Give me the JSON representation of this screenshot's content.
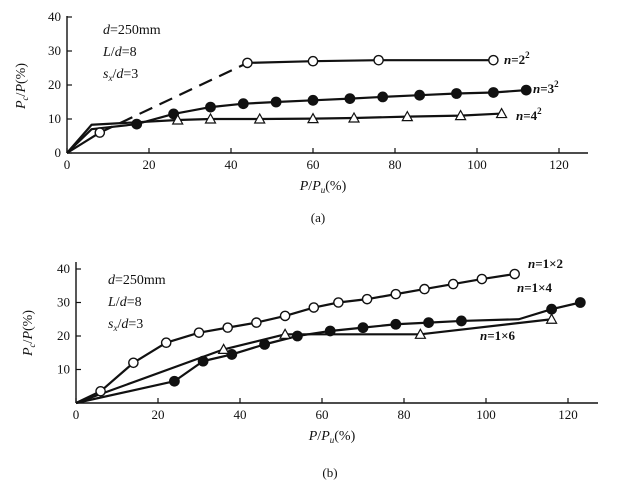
{
  "chart_data": [
    {
      "type": "line",
      "caption": "(a)",
      "xlabel": "P/Pu(%)",
      "ylabel": "Pc/P(%)",
      "xlim": [
        0,
        130
      ],
      "ylim": [
        0,
        40
      ],
      "xticks": [
        "0",
        "20",
        "40",
        "60",
        "80",
        "100",
        "120"
      ],
      "yticks": [
        "0",
        "10",
        "20",
        "30",
        "40"
      ],
      "annotations": [
        "d=250mm",
        "L/d=8",
        "sx/d=3"
      ],
      "series": [
        {
          "name": "n=2²",
          "marker": "open-circle",
          "x": [
            0,
            8,
            44,
            60,
            76,
            104
          ],
          "y": [
            0,
            6,
            26.5,
            27,
            27.3,
            27.3
          ],
          "dashed_segment": [
            8,
            44
          ],
          "marker_x": [
            8,
            44,
            60,
            76,
            104
          ],
          "marker_y": [
            6,
            26.5,
            27,
            27.3,
            27.3
          ]
        },
        {
          "name": "n=3²",
          "marker": "filled-circle",
          "x": [
            0,
            6,
            17,
            26,
            35,
            43,
            51,
            60,
            69,
            77,
            86,
            95,
            104,
            112
          ],
          "y": [
            0,
            7,
            8.5,
            11.5,
            13.5,
            14.5,
            15,
            15.5,
            16,
            16.5,
            17,
            17.5,
            17.8,
            18.5
          ],
          "marker_x": [
            17,
            26,
            35,
            43,
            51,
            60,
            69,
            77,
            86,
            95,
            104,
            112
          ],
          "marker_y": [
            8.5,
            11.5,
            13.5,
            14.5,
            15,
            15.5,
            16,
            16.5,
            17,
            17.5,
            17.8,
            18.5
          ]
        },
        {
          "name": "n=4²",
          "marker": "open-triangle",
          "x": [
            0,
            6,
            27,
            35,
            47,
            60,
            70,
            83,
            96,
            106
          ],
          "y": [
            0,
            8.3,
            9.7,
            10,
            10,
            10.1,
            10.3,
            10.7,
            11,
            11.6
          ],
          "marker_x": [
            27,
            35,
            47,
            60,
            70,
            83,
            96,
            106
          ],
          "marker_y": [
            9.7,
            10,
            10,
            10.1,
            10.3,
            10.7,
            11,
            11.6
          ]
        }
      ]
    },
    {
      "type": "line",
      "caption": "(b)",
      "xlabel": "P/Pu(%)",
      "ylabel": "Pc/P(%)",
      "xlim": [
        0,
        130
      ],
      "ylim": [
        0,
        40
      ],
      "xticks": [
        "0",
        "20",
        "40",
        "60",
        "80",
        "100",
        "120"
      ],
      "yticks": [
        "10",
        "20",
        "30",
        "40"
      ],
      "annotations": [
        "d=250mm",
        "L/d=8",
        "sx/d=3"
      ],
      "series": [
        {
          "name": "n=1×2",
          "marker": "open-circle",
          "x": [
            0,
            6,
            14,
            22,
            30,
            37,
            44,
            51,
            58,
            64,
            71,
            78,
            85,
            92,
            99,
            107
          ],
          "y": [
            0,
            3.5,
            12,
            18,
            21,
            22.5,
            24,
            26,
            28.5,
            30,
            31,
            32.5,
            34,
            35.5,
            37,
            38.5
          ],
          "marker_x": [
            6,
            14,
            22,
            30,
            37,
            44,
            51,
            58,
            64,
            71,
            78,
            85,
            92,
            99,
            107
          ],
          "marker_y": [
            3.5,
            12,
            18,
            21,
            22.5,
            24,
            26,
            28.5,
            30,
            31,
            32.5,
            34,
            35.5,
            37,
            38.5
          ]
        },
        {
          "name": "n=1×4",
          "marker": "filled-circle",
          "x": [
            0,
            24,
            31,
            38,
            46,
            54,
            62,
            70,
            78,
            86,
            94,
            108,
            116,
            123
          ],
          "y": [
            0,
            6.5,
            12.5,
            14.5,
            17.5,
            20,
            21.5,
            22.5,
            23.5,
            24,
            24.5,
            25,
            28,
            30
          ],
          "marker_x": [
            24,
            31,
            38,
            46,
            54,
            62,
            70,
            78,
            86,
            94,
            116,
            123
          ],
          "marker_y": [
            6.5,
            12.5,
            14.5,
            17.5,
            20,
            21.5,
            22.5,
            23.5,
            24,
            24.5,
            28,
            30
          ]
        },
        {
          "name": "n=1×6",
          "marker": "open-triangle",
          "x": [
            0,
            36,
            51,
            84,
            116
          ],
          "y": [
            0,
            16,
            20.5,
            20.5,
            25
          ],
          "marker_x": [
            36,
            51,
            84,
            116
          ],
          "marker_y": [
            16,
            20.5,
            20.5,
            25
          ]
        }
      ]
    }
  ]
}
